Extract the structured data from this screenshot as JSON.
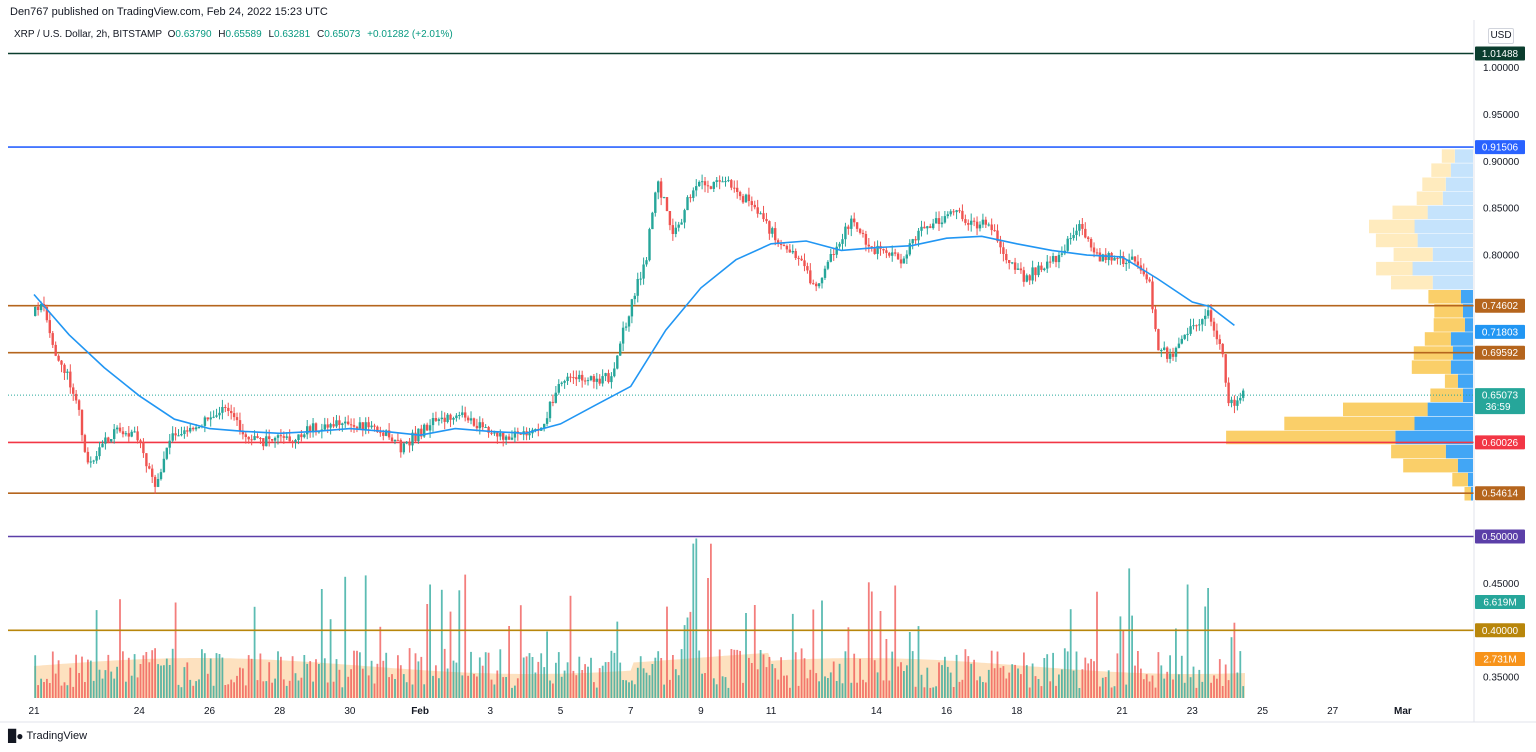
{
  "header": {
    "publisher": "Den767 published on TradingView.com, Feb 24, 2022 15:23 UTC",
    "symbol": "XRP / U.S. Dollar, 2h, BITSTAMP",
    "ohlc": [
      {
        "key": "O",
        "value": "0.63790"
      },
      {
        "key": "H",
        "value": "0.65589"
      },
      {
        "key": "L",
        "value": "0.63281"
      },
      {
        "key": "C",
        "value": "0.65073"
      }
    ],
    "change": "+0.01282 (+2.01%)",
    "currency": "USD"
  },
  "footer": {
    "brand": "TradingView"
  },
  "colors": {
    "up": "#26a69a",
    "down": "#ef5350",
    "ma": "#2196f3",
    "orange_line": "#b5651d",
    "red_line": "#f23645",
    "blue_line": "#2962ff",
    "purple_line": "#5b3fa8",
    "gold_line": "#b8860b",
    "dark_line": "#0b3d2e"
  },
  "chart_data": {
    "type": "candlestick",
    "title": "XRP / U.S. Dollar, 2h, BITSTAMP",
    "ylim": [
      0.315,
      1.025
    ],
    "y_ticks": [
      "1.00000",
      "0.95000",
      "0.90000",
      "0.85000",
      "0.80000",
      "0.45000",
      "0.40000",
      "0.35000"
    ],
    "x_tick_labels": [
      {
        "label": "21",
        "day": 0
      },
      {
        "label": "24",
        "day": 3
      },
      {
        "label": "26",
        "day": 5
      },
      {
        "label": "28",
        "day": 7
      },
      {
        "label": "30",
        "day": 9
      },
      {
        "label": "Feb",
        "day": 11
      },
      {
        "label": "3",
        "day": 13
      },
      {
        "label": "5",
        "day": 15
      },
      {
        "label": "7",
        "day": 17
      },
      {
        "label": "9",
        "day": 19
      },
      {
        "label": "11",
        "day": 21
      },
      {
        "label": "14",
        "day": 24
      },
      {
        "label": "16",
        "day": 26
      },
      {
        "label": "18",
        "day": 28
      },
      {
        "label": "21",
        "day": 31
      },
      {
        "label": "23",
        "day": 33
      },
      {
        "label": "25",
        "day": 35
      },
      {
        "label": "27",
        "day": 37
      },
      {
        "label": "Mar",
        "day": 39
      }
    ],
    "price_path": [
      [
        0,
        0.735
      ],
      [
        0.3,
        0.755
      ],
      [
        0.7,
        0.69
      ],
      [
        1.0,
        0.67
      ],
      [
        1.3,
        0.64
      ],
      [
        1.6,
        0.57
      ],
      [
        2.0,
        0.6
      ],
      [
        2.5,
        0.615
      ],
      [
        3.0,
        0.605
      ],
      [
        3.5,
        0.555
      ],
      [
        4.0,
        0.61
      ],
      [
        4.5,
        0.615
      ],
      [
        5.0,
        0.625
      ],
      [
        5.5,
        0.64
      ],
      [
        6.0,
        0.61
      ],
      [
        6.5,
        0.6
      ],
      [
        7.0,
        0.61
      ],
      [
        7.5,
        0.605
      ],
      [
        8.0,
        0.615
      ],
      [
        8.5,
        0.62
      ],
      [
        9.0,
        0.618
      ],
      [
        9.5,
        0.62
      ],
      [
        10.0,
        0.61
      ],
      [
        10.5,
        0.595
      ],
      [
        11.0,
        0.61
      ],
      [
        11.5,
        0.625
      ],
      [
        12.0,
        0.63
      ],
      [
        12.5,
        0.625
      ],
      [
        13.0,
        0.61
      ],
      [
        13.5,
        0.605
      ],
      [
        14.0,
        0.61
      ],
      [
        14.5,
        0.615
      ],
      [
        15.0,
        0.66
      ],
      [
        15.5,
        0.67
      ],
      [
        16.0,
        0.665
      ],
      [
        16.5,
        0.67
      ],
      [
        17.0,
        0.74
      ],
      [
        17.5,
        0.8
      ],
      [
        17.8,
        0.88
      ],
      [
        18.3,
        0.82
      ],
      [
        18.8,
        0.87
      ],
      [
        19.3,
        0.875
      ],
      [
        19.8,
        0.88
      ],
      [
        20.3,
        0.86
      ],
      [
        20.8,
        0.84
      ],
      [
        21.3,
        0.81
      ],
      [
        21.8,
        0.8
      ],
      [
        22.3,
        0.765
      ],
      [
        22.8,
        0.8
      ],
      [
        23.3,
        0.835
      ],
      [
        23.8,
        0.81
      ],
      [
        24.3,
        0.8
      ],
      [
        24.8,
        0.795
      ],
      [
        25.3,
        0.825
      ],
      [
        25.8,
        0.835
      ],
      [
        26.3,
        0.845
      ],
      [
        26.8,
        0.835
      ],
      [
        27.3,
        0.83
      ],
      [
        27.8,
        0.79
      ],
      [
        28.3,
        0.775
      ],
      [
        28.8,
        0.79
      ],
      [
        29.3,
        0.8
      ],
      [
        29.8,
        0.835
      ],
      [
        30.3,
        0.8
      ],
      [
        30.8,
        0.795
      ],
      [
        31.3,
        0.795
      ],
      [
        31.8,
        0.775
      ],
      [
        32.1,
        0.7
      ],
      [
        32.5,
        0.69
      ],
      [
        33.0,
        0.72
      ],
      [
        33.5,
        0.74
      ],
      [
        33.9,
        0.7
      ],
      [
        34.1,
        0.64
      ],
      [
        34.5,
        0.65
      ]
    ],
    "ma_path": [
      [
        0,
        0.758
      ],
      [
        1.0,
        0.715
      ],
      [
        2.0,
        0.68
      ],
      [
        3.0,
        0.65
      ],
      [
        4.0,
        0.625
      ],
      [
        5.0,
        0.615
      ],
      [
        6.0,
        0.612
      ],
      [
        7.0,
        0.61
      ],
      [
        8.0,
        0.612
      ],
      [
        9.0,
        0.615
      ],
      [
        10.0,
        0.612
      ],
      [
        11.0,
        0.608
      ],
      [
        12.0,
        0.615
      ],
      [
        13.0,
        0.612
      ],
      [
        14.0,
        0.61
      ],
      [
        15.0,
        0.62
      ],
      [
        16.0,
        0.64
      ],
      [
        17.0,
        0.66
      ],
      [
        18.0,
        0.72
      ],
      [
        19.0,
        0.765
      ],
      [
        20.0,
        0.795
      ],
      [
        21.0,
        0.812
      ],
      [
        22.0,
        0.815
      ],
      [
        23.0,
        0.805
      ],
      [
        24.0,
        0.808
      ],
      [
        25.0,
        0.81
      ],
      [
        26.0,
        0.818
      ],
      [
        27.0,
        0.82
      ],
      [
        28.0,
        0.812
      ],
      [
        29.0,
        0.805
      ],
      [
        30.0,
        0.8
      ],
      [
        31.0,
        0.798
      ],
      [
        32.0,
        0.775
      ],
      [
        33.0,
        0.75
      ],
      [
        33.5,
        0.745
      ],
      [
        34.2,
        0.725
      ]
    ],
    "horizontal_levels": [
      {
        "value": 1.01488,
        "label": "1.01488",
        "color": "#0b3d2e"
      },
      {
        "value": 0.91506,
        "label": "0.91506",
        "color": "#2962ff"
      },
      {
        "value": 0.74602,
        "label": "0.74602",
        "color": "#b5651d"
      },
      {
        "value": 0.69592,
        "label": "0.69592",
        "color": "#b5651d"
      },
      {
        "value": 0.60026,
        "label": "0.60026",
        "color": "#f23645"
      },
      {
        "value": 0.54614,
        "label": "0.54614",
        "color": "#b5651d"
      },
      {
        "value": 0.5,
        "label": "0.50000",
        "color": "#5b3fa8"
      },
      {
        "value": 0.4,
        "label": "0.40000",
        "color": "#b8860b"
      }
    ],
    "price_badges": [
      {
        "value": 0.71803,
        "label": "0.71803",
        "color": "#2196f3"
      },
      {
        "value": 0.65073,
        "label": "0.65073",
        "sublabel": "36:59",
        "color": "#26a69a"
      }
    ],
    "volume": {
      "last": "6.619M",
      "average": "2.731M",
      "last_color": "#26a69a",
      "average_color": "#f7931a"
    },
    "volume_profile": [
      {
        "price": 0.905,
        "buy": 0.1,
        "sell": 0.18
      },
      {
        "price": 0.89,
        "buy": 0.15,
        "sell": 0.22
      },
      {
        "price": 0.875,
        "buy": 0.18,
        "sell": 0.27
      },
      {
        "price": 0.86,
        "buy": 0.2,
        "sell": 0.3
      },
      {
        "price": 0.845,
        "buy": 0.27,
        "sell": 0.45
      },
      {
        "price": 0.83,
        "buy": 0.35,
        "sell": 0.58
      },
      {
        "price": 0.815,
        "buy": 0.32,
        "sell": 0.55
      },
      {
        "price": 0.8,
        "buy": 0.3,
        "sell": 0.4
      },
      {
        "price": 0.785,
        "buy": 0.28,
        "sell": 0.6
      },
      {
        "price": 0.77,
        "buy": 0.32,
        "sell": 0.4
      },
      {
        "price": 0.755,
        "buy": 0.25,
        "sell": 0.12
      },
      {
        "price": 0.74,
        "buy": 0.22,
        "sell": 0.1
      },
      {
        "price": 0.725,
        "buy": 0.24,
        "sell": 0.08
      },
      {
        "price": 0.71,
        "buy": 0.2,
        "sell": 0.22
      },
      {
        "price": 0.695,
        "buy": 0.3,
        "sell": 0.2
      },
      {
        "price": 0.68,
        "buy": 0.3,
        "sell": 0.22
      },
      {
        "price": 0.665,
        "buy": 0.1,
        "sell": 0.15
      },
      {
        "price": 0.65,
        "buy": 0.25,
        "sell": 0.1
      },
      {
        "price": 0.635,
        "buy": 0.65,
        "sell": 0.45
      },
      {
        "price": 0.62,
        "buy": 1.0,
        "sell": 0.58
      },
      {
        "price": 0.605,
        "buy": 1.3,
        "sell": 0.77
      },
      {
        "price": 0.59,
        "buy": 0.42,
        "sell": 0.27
      },
      {
        "price": 0.575,
        "buy": 0.42,
        "sell": 0.15
      },
      {
        "price": 0.56,
        "buy": 0.12,
        "sell": 0.05
      },
      {
        "price": 0.545,
        "buy": 0.05,
        "sell": 0.02
      }
    ]
  }
}
